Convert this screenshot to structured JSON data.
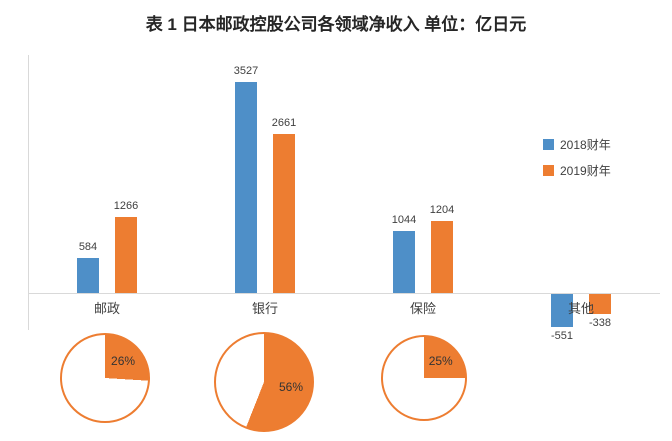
{
  "title": "表 1 日本邮政控股公司各领域净收入 单位：亿日元",
  "legend": {
    "series1": "2018财年",
    "series2": "2019财年"
  },
  "colors": {
    "series1": "#4E8FC8",
    "series2": "#ED7D31",
    "axis": "#D9D9D9",
    "text": "#404040",
    "pie_label": "#333333"
  },
  "chart_data": {
    "type": "bar",
    "title": "表 1 日本邮政控股公司各领域净收入 单位：亿日元",
    "unit": "亿日元",
    "categories": [
      "邮政",
      "银行",
      "保险",
      "其他"
    ],
    "series": [
      {
        "name": "2018财年",
        "color": "#4E8FC8",
        "values": [
          584,
          3527,
          1044,
          -551
        ]
      },
      {
        "name": "2019财年",
        "color": "#ED7D31",
        "values": [
          1266,
          2661,
          1204,
          -338
        ]
      }
    ],
    "ylim": [
      -600,
      3700
    ],
    "grid": false,
    "legend_position": "right",
    "pies": [
      {
        "category": "邮政",
        "percent": 26,
        "label": "26%"
      },
      {
        "category": "银行",
        "percent": 56,
        "label": "56%"
      },
      {
        "category": "保险",
        "percent": 25,
        "label": "25%"
      }
    ]
  }
}
